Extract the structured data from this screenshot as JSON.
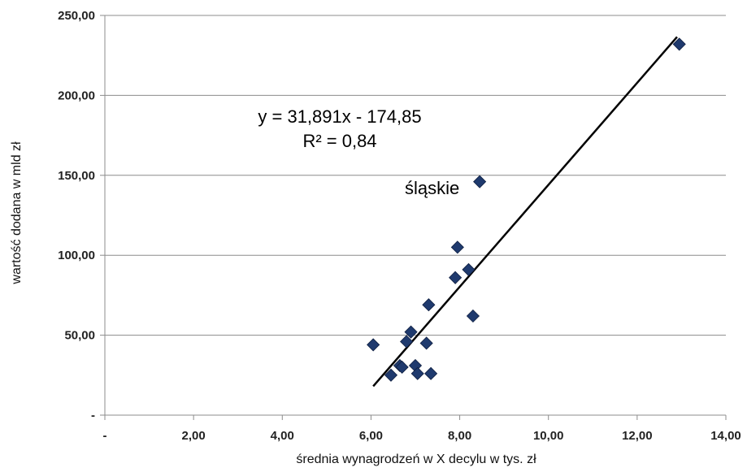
{
  "chart_data": {
    "type": "scatter",
    "xlabel": "średnia wynagrodzeń w X decylu w tys. zł",
    "ylabel": "wartość dodana w mld zł",
    "xlim": [
      0,
      14
    ],
    "ylim": [
      0,
      250
    ],
    "x_ticks": [
      "-",
      "2,00",
      "4,00",
      "6,00",
      "8,00",
      "10,00",
      "12,00",
      "14,00"
    ],
    "y_ticks": [
      "-",
      "50,00",
      "100,00",
      "150,00",
      "200,00",
      "250,00"
    ],
    "grid": "horizontal",
    "marker_color": "#1f3a6e",
    "line_color": "#000000",
    "series": [
      {
        "points": [
          {
            "x": 12.95,
            "y": 232
          },
          {
            "x": 8.45,
            "y": 146
          },
          {
            "x": 7.95,
            "y": 105
          },
          {
            "x": 8.2,
            "y": 91
          },
          {
            "x": 7.9,
            "y": 86
          },
          {
            "x": 7.3,
            "y": 69
          },
          {
            "x": 8.3,
            "y": 62
          },
          {
            "x": 6.9,
            "y": 52
          },
          {
            "x": 6.8,
            "y": 46
          },
          {
            "x": 7.25,
            "y": 45
          },
          {
            "x": 6.05,
            "y": 44
          },
          {
            "x": 6.65,
            "y": 31
          },
          {
            "x": 6.7,
            "y": 30
          },
          {
            "x": 7.0,
            "y": 31
          },
          {
            "x": 7.05,
            "y": 26
          },
          {
            "x": 6.45,
            "y": 25
          },
          {
            "x": 7.35,
            "y": 26
          }
        ]
      }
    ],
    "trendline": {
      "x_start": 6.05,
      "x_end": 12.9,
      "slope": 31.891,
      "intercept": -174.85
    },
    "annotations": {
      "equation": "y = 31,891x - 174,85",
      "r2": "R² = 0,84",
      "point_label": "śląskie"
    }
  }
}
